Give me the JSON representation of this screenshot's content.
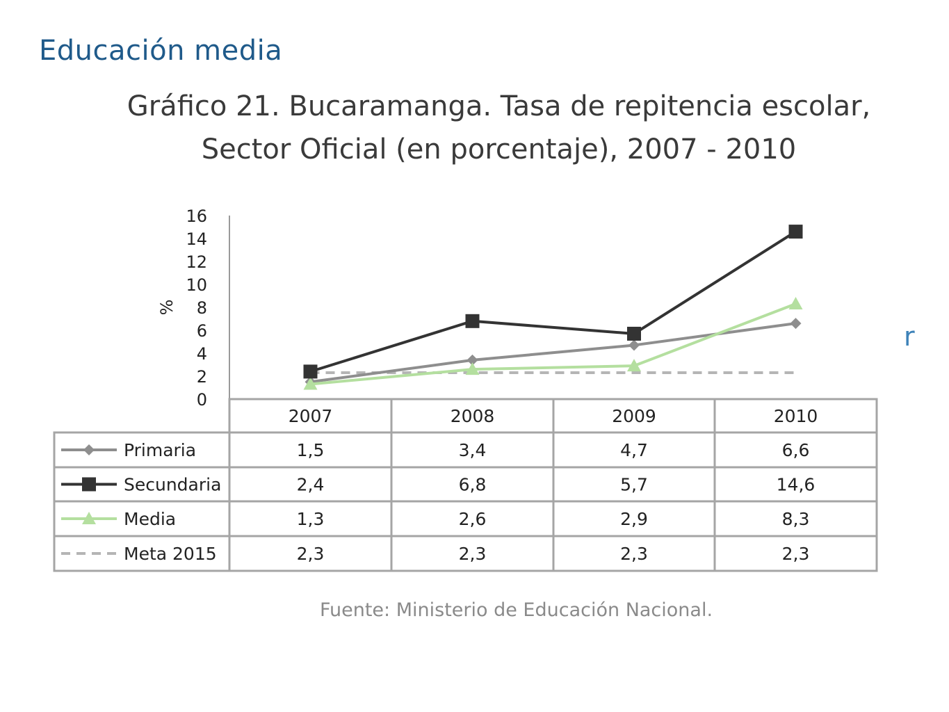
{
  "page": {
    "title": "Educación media",
    "edge_glyph": "r"
  },
  "chart_data": {
    "type": "line",
    "title": "Gráfico 21. Bucaramanga. Tasa de repitencia escolar, Sector Oficial (en porcentaje), 2007 - 2010",
    "title_lines": [
      "Gráfico 21. Bucaramanga. Tasa de repitencia escolar,",
      "Sector Oficial (en porcentaje), 2007 - 2010"
    ],
    "ylabel": "%",
    "xlabel": "",
    "ylim": [
      0,
      16
    ],
    "yticks": [
      0,
      2,
      4,
      6,
      8,
      10,
      12,
      14,
      16
    ],
    "categories": [
      "2007",
      "2008",
      "2009",
      "2010"
    ],
    "grid": false,
    "legend_placement": "data-table-left",
    "series": [
      {
        "name": "Primaria",
        "values": [
          1.5,
          3.4,
          4.7,
          6.6
        ],
        "labels": [
          "1,5",
          "3,4",
          "4,7",
          "6,6"
        ],
        "color": "#8e8e8e",
        "marker": "diamond",
        "dashed": false
      },
      {
        "name": "Secundaria",
        "values": [
          2.4,
          6.8,
          5.7,
          14.6
        ],
        "labels": [
          "2,4",
          "6,8",
          "5,7",
          "14,6"
        ],
        "color": "#333333",
        "marker": "square",
        "dashed": false
      },
      {
        "name": "Media",
        "values": [
          1.3,
          2.6,
          2.9,
          8.3
        ],
        "labels": [
          "1,3",
          "2,6",
          "2,9",
          "8,3"
        ],
        "color": "#b4df9f",
        "marker": "triangle",
        "dashed": false
      },
      {
        "name": "Meta 2015",
        "values": [
          2.3,
          2.3,
          2.3,
          2.3
        ],
        "labels": [
          "2,3",
          "2,3",
          "2,3",
          "2,3"
        ],
        "color": "#b5b5b5",
        "marker": "none",
        "dashed": true
      }
    ],
    "source": "Fuente: Ministerio de Educación Nacional."
  }
}
